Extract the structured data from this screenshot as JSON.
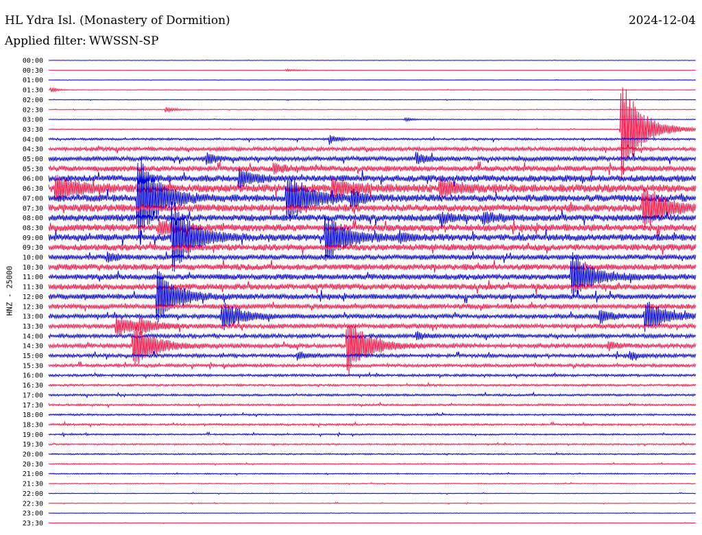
{
  "header": {
    "station": "HL Ydra Isl. (Monastery of Dormition)",
    "date": "2024-12-04",
    "filter_label": "Applied filter:",
    "filter_value": "WWSSN-SP"
  },
  "chart_data": {
    "type": "helicorder",
    "title": "HL Ydra Isl. (Monastery of Dormition)",
    "date": "2024-12-04",
    "ylabel": "HNZ - 25000",
    "filter": "WWSSN-SP",
    "trace_minutes": 30,
    "colors": [
      "#0000e0",
      "#ff1144"
    ],
    "tick_labels": [
      "00:00",
      "00:30",
      "01:00",
      "01:30",
      "02:00",
      "02:30",
      "03:00",
      "03:30",
      "04:00",
      "04:30",
      "05:00",
      "05:30",
      "06:00",
      "06:30",
      "07:00",
      "07:30",
      "08:00",
      "08:30",
      "09:00",
      "09:30",
      "10:00",
      "10:30",
      "11:00",
      "11:30",
      "12:00",
      "12:30",
      "13:00",
      "13:30",
      "14:00",
      "14:30",
      "15:00",
      "15:30",
      "16:00",
      "16:30",
      "17:00",
      "17:30",
      "18:00",
      "18:30",
      "19:00",
      "19:30",
      "20:00",
      "20:30",
      "21:00",
      "21:30",
      "22:00",
      "22:30",
      "23:00",
      "23:30"
    ],
    "noise_level": [
      0.2,
      0.2,
      0.25,
      0.3,
      0.3,
      0.3,
      0.4,
      0.5,
      1.2,
      2.2,
      2.6,
      3.2,
      3.8,
      4.6,
      4.0,
      4.2,
      3.8,
      4.0,
      3.8,
      3.6,
      3.0,
      3.4,
      3.2,
      3.4,
      3.0,
      2.8,
      2.4,
      2.6,
      2.2,
      2.4,
      2.0,
      1.8,
      1.4,
      1.2,
      1.2,
      1.1,
      1.0,
      1.1,
      0.9,
      0.8,
      0.8,
      0.6,
      0.6,
      0.5,
      0.4,
      0.4,
      0.3,
      0.3
    ],
    "events": [
      {
        "row": 1,
        "minute": 11.0,
        "amp": 2,
        "dur": 0.8
      },
      {
        "row": 3,
        "minute": 0.1,
        "amp": 4,
        "dur": 0.5
      },
      {
        "row": 5,
        "minute": 5.4,
        "amp": 4,
        "dur": 0.8
      },
      {
        "row": 6,
        "minute": 16.5,
        "amp": 3,
        "dur": 0.6
      },
      {
        "row": 7,
        "minute": 26.5,
        "amp": 80,
        "dur": 1.5
      },
      {
        "row": 8,
        "minute": 13.0,
        "amp": 7,
        "dur": 0.6
      },
      {
        "row": 10,
        "minute": 7.3,
        "amp": 8,
        "dur": 0.8
      },
      {
        "row": 10,
        "minute": 17.0,
        "amp": 8,
        "dur": 0.8
      },
      {
        "row": 11,
        "minute": 10.4,
        "amp": 6,
        "dur": 1.0
      },
      {
        "row": 12,
        "minute": 4.2,
        "amp": 6,
        "dur": 0.8
      },
      {
        "row": 12,
        "minute": 8.8,
        "amp": 14,
        "dur": 1.0
      },
      {
        "row": 13,
        "minute": 0.3,
        "amp": 20,
        "dur": 1.5
      },
      {
        "row": 13,
        "minute": 13.1,
        "amp": 14,
        "dur": 1.5
      },
      {
        "row": 13,
        "minute": 18.1,
        "amp": 12,
        "dur": 1.5
      },
      {
        "row": 14,
        "minute": 4.1,
        "amp": 70,
        "dur": 1.5
      },
      {
        "row": 14,
        "minute": 11.0,
        "amp": 40,
        "dur": 1.5
      },
      {
        "row": 14,
        "minute": 14.0,
        "amp": 12,
        "dur": 0.8
      },
      {
        "row": 15,
        "minute": 27.5,
        "amp": 35,
        "dur": 1.5
      },
      {
        "row": 16,
        "minute": 18.1,
        "amp": 8,
        "dur": 1.0
      },
      {
        "row": 16,
        "minute": 20.1,
        "amp": 8,
        "dur": 1.0
      },
      {
        "row": 17,
        "minute": 5.1,
        "amp": 12,
        "dur": 1.0
      },
      {
        "row": 18,
        "minute": 5.7,
        "amp": 60,
        "dur": 1.5
      },
      {
        "row": 18,
        "minute": 12.8,
        "amp": 35,
        "dur": 1.5
      },
      {
        "row": 18,
        "minute": 16.2,
        "amp": 6,
        "dur": 0.8
      },
      {
        "row": 20,
        "minute": 2.7,
        "amp": 8,
        "dur": 0.6
      },
      {
        "row": 22,
        "minute": 24.2,
        "amp": 35,
        "dur": 1.5
      },
      {
        "row": 24,
        "minute": 5.0,
        "amp": 40,
        "dur": 1.5
      },
      {
        "row": 26,
        "minute": 8.0,
        "amp": 22,
        "dur": 1.5
      },
      {
        "row": 26,
        "minute": 25.5,
        "amp": 10,
        "dur": 1.0
      },
      {
        "row": 26,
        "minute": 27.6,
        "amp": 25,
        "dur": 1.5
      },
      {
        "row": 27,
        "minute": 3.1,
        "amp": 14,
        "dur": 1.5
      },
      {
        "row": 27,
        "minute": 4.2,
        "amp": 10,
        "dur": 1.0
      },
      {
        "row": 28,
        "minute": 17.0,
        "amp": 6,
        "dur": 0.8
      },
      {
        "row": 29,
        "minute": 3.9,
        "amp": 35,
        "dur": 1.5
      },
      {
        "row": 29,
        "minute": 13.8,
        "amp": 45,
        "dur": 1.5
      },
      {
        "row": 29,
        "minute": 25.9,
        "amp": 6,
        "dur": 0.8
      },
      {
        "row": 30,
        "minute": 11.5,
        "amp": 6,
        "dur": 0.8
      },
      {
        "row": 30,
        "minute": 26.9,
        "amp": 6,
        "dur": 0.8
      }
    ]
  }
}
